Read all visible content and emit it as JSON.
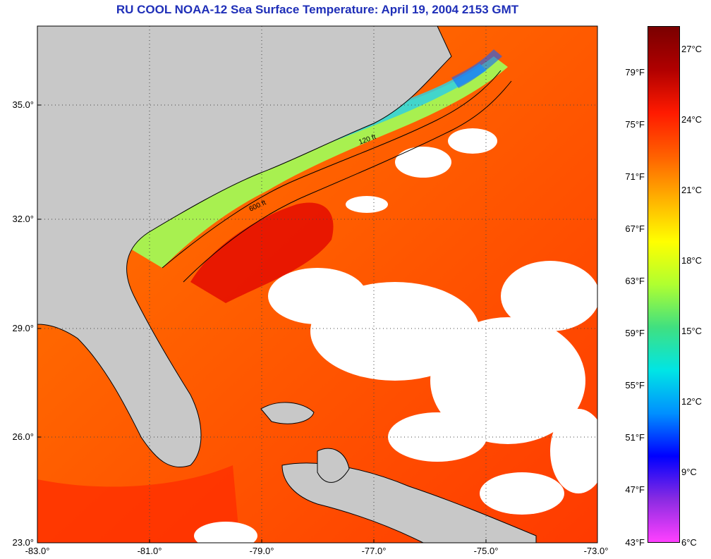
{
  "title": "RU COOL  NOAA-12  Sea Surface Temperature:  April 19, 2004 2153 GMT",
  "latitude_labels": [
    "35.0°",
    "32.0°",
    "29.0°",
    "26.0°",
    "23.0°"
  ],
  "longitude_labels": [
    "-83.0°",
    "-81.0°",
    "-79.0°",
    "-77.0°",
    "-75.0°",
    "-73.0°"
  ],
  "colorbar": {
    "fahrenheit_labels": [
      "79°F",
      "75°F",
      "71°F",
      "67°F",
      "63°F",
      "59°F",
      "55°F",
      "51°F",
      "47°F",
      "43°F"
    ],
    "celsius_labels": [
      "27°C",
      "24°C",
      "21°C",
      "18°C",
      "15°C",
      "12°C",
      "9°C",
      "6°C"
    ],
    "colors": [
      "#ff40ff",
      "#8a2be2",
      "#0000ff",
      "#0090ff",
      "#00e5e5",
      "#40e080",
      "#b0ff30",
      "#ffff00",
      "#ffb000",
      "#ff6000",
      "#ff1a00",
      "#b00000",
      "#7a0000"
    ]
  },
  "contour_labels": [
    "120 ft",
    "600 ft"
  ],
  "colors": {
    "land": "#c8c8c8",
    "cloud": "#ffffff",
    "title": "#1f2fb8"
  }
}
